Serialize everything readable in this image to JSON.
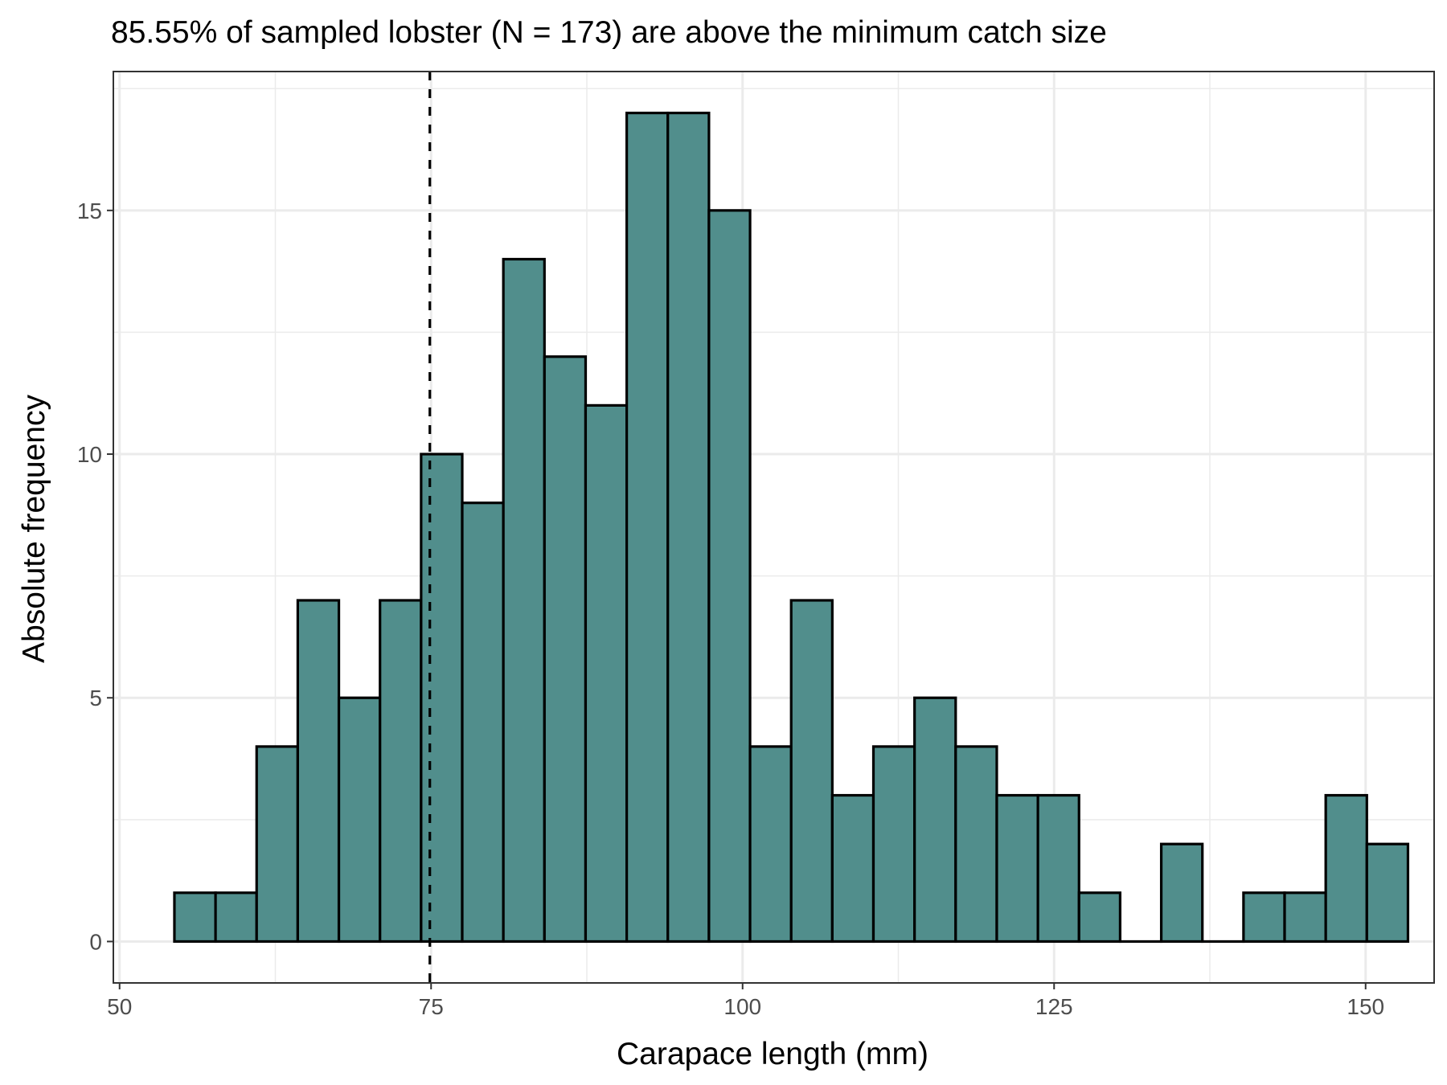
{
  "chart_data": {
    "type": "bar",
    "title": "85.55% of sampled lobster (N = 173) are above the minimum catch size",
    "xlabel": "Carapace length (mm)",
    "ylabel": "Absolute frequency",
    "xlim": [
      49.5,
      155.5
    ],
    "ylim": [
      -0.85,
      17.85
    ],
    "xticks": [
      50,
      75,
      100,
      125,
      150
    ],
    "yticks": [
      0,
      5,
      10,
      15
    ],
    "grid": true,
    "bin_width": 3.3,
    "bins_start": 54.4,
    "values": [
      1,
      1,
      4,
      7,
      5,
      7,
      10,
      9,
      14,
      12,
      11,
      17,
      17,
      15,
      4,
      7,
      3,
      4,
      5,
      4,
      3,
      3,
      1,
      0,
      2,
      0,
      1,
      1,
      3,
      2
    ],
    "threshold": 74.9,
    "colors": {
      "bar_fill": "#518e8c",
      "bar_stroke": "#000000",
      "grid": "#ebebeb",
      "threshold_line": "#000000"
    }
  }
}
